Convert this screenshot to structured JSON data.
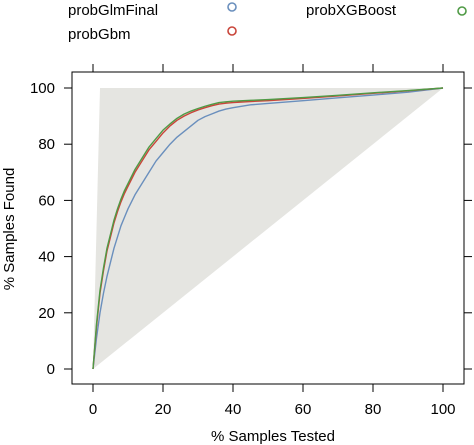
{
  "chart_data": {
    "type": "line",
    "title": "",
    "xlabel": "% Samples Tested",
    "ylabel": "% Samples Found",
    "xlim": [
      -5,
      105
    ],
    "ylim": [
      -5,
      106
    ],
    "x_ticks": [
      0,
      20,
      40,
      60,
      80,
      100
    ],
    "y_ticks": [
      0,
      20,
      40,
      60,
      80,
      100
    ],
    "x_tick_labels": [
      "0",
      "20",
      "40",
      "60",
      "80",
      "100"
    ],
    "y_tick_labels": [
      "0",
      "20",
      "40",
      "60",
      "80",
      100
    ],
    "grid": false,
    "legend_position": "top",
    "reference_region": {
      "points": [
        [
          0,
          0
        ],
        [
          2,
          100
        ],
        [
          100,
          100
        ]
      ],
      "color": "#e5e5e1"
    },
    "series": [
      {
        "name": "probGlmFinal",
        "color": "#6a8fbd",
        "x": [
          0,
          1,
          2,
          3,
          4,
          5,
          6,
          7,
          8,
          9,
          10,
          12,
          14,
          16,
          18,
          20,
          22,
          24,
          26,
          28,
          30,
          32,
          34,
          36,
          38,
          40,
          45,
          50,
          60,
          70,
          80,
          90,
          100
        ],
        "y": [
          0,
          11,
          20,
          27,
          33,
          38,
          43,
          47,
          51,
          54,
          57,
          62,
          66,
          70,
          74,
          77,
          80,
          82.5,
          84.5,
          86.5,
          88.5,
          89.8,
          90.8,
          91.8,
          92.5,
          93,
          94,
          94.5,
          95.5,
          96.5,
          97.5,
          98.5,
          100
        ]
      },
      {
        "name": "probGbm",
        "color": "#c9453a",
        "x": [
          0,
          1,
          2,
          3,
          4,
          5,
          6,
          7,
          8,
          9,
          10,
          12,
          14,
          16,
          18,
          20,
          22,
          24,
          26,
          28,
          30,
          32,
          34,
          36,
          38,
          40,
          45,
          50,
          60,
          70,
          80,
          90,
          100
        ],
        "y": [
          0,
          15,
          27,
          35,
          42,
          47,
          52,
          56,
          59.5,
          62.5,
          65,
          70,
          74,
          78,
          81,
          84,
          86.5,
          88.5,
          90,
          91.2,
          92.2,
          93,
          93.7,
          94.3,
          94.6,
          94.8,
          95.2,
          95.5,
          96.3,
          97.2,
          98.1,
          99,
          100
        ]
      },
      {
        "name": "probXGBoost",
        "color": "#4f9a45",
        "x": [
          0,
          1,
          2,
          3,
          4,
          5,
          6,
          7,
          8,
          9,
          10,
          12,
          14,
          16,
          18,
          20,
          22,
          24,
          26,
          28,
          30,
          32,
          34,
          36,
          38,
          40,
          45,
          50,
          60,
          70,
          80,
          90,
          100
        ],
        "y": [
          0,
          16,
          28,
          36,
          43,
          48,
          53,
          57,
          60.5,
          63.5,
          66,
          71,
          75,
          79,
          82,
          85,
          87.2,
          89.2,
          90.7,
          91.8,
          92.7,
          93.5,
          94.2,
          94.8,
          95.1,
          95.3,
          95.6,
          95.9,
          96.6,
          97.4,
          98.3,
          99.1,
          100
        ]
      }
    ]
  }
}
